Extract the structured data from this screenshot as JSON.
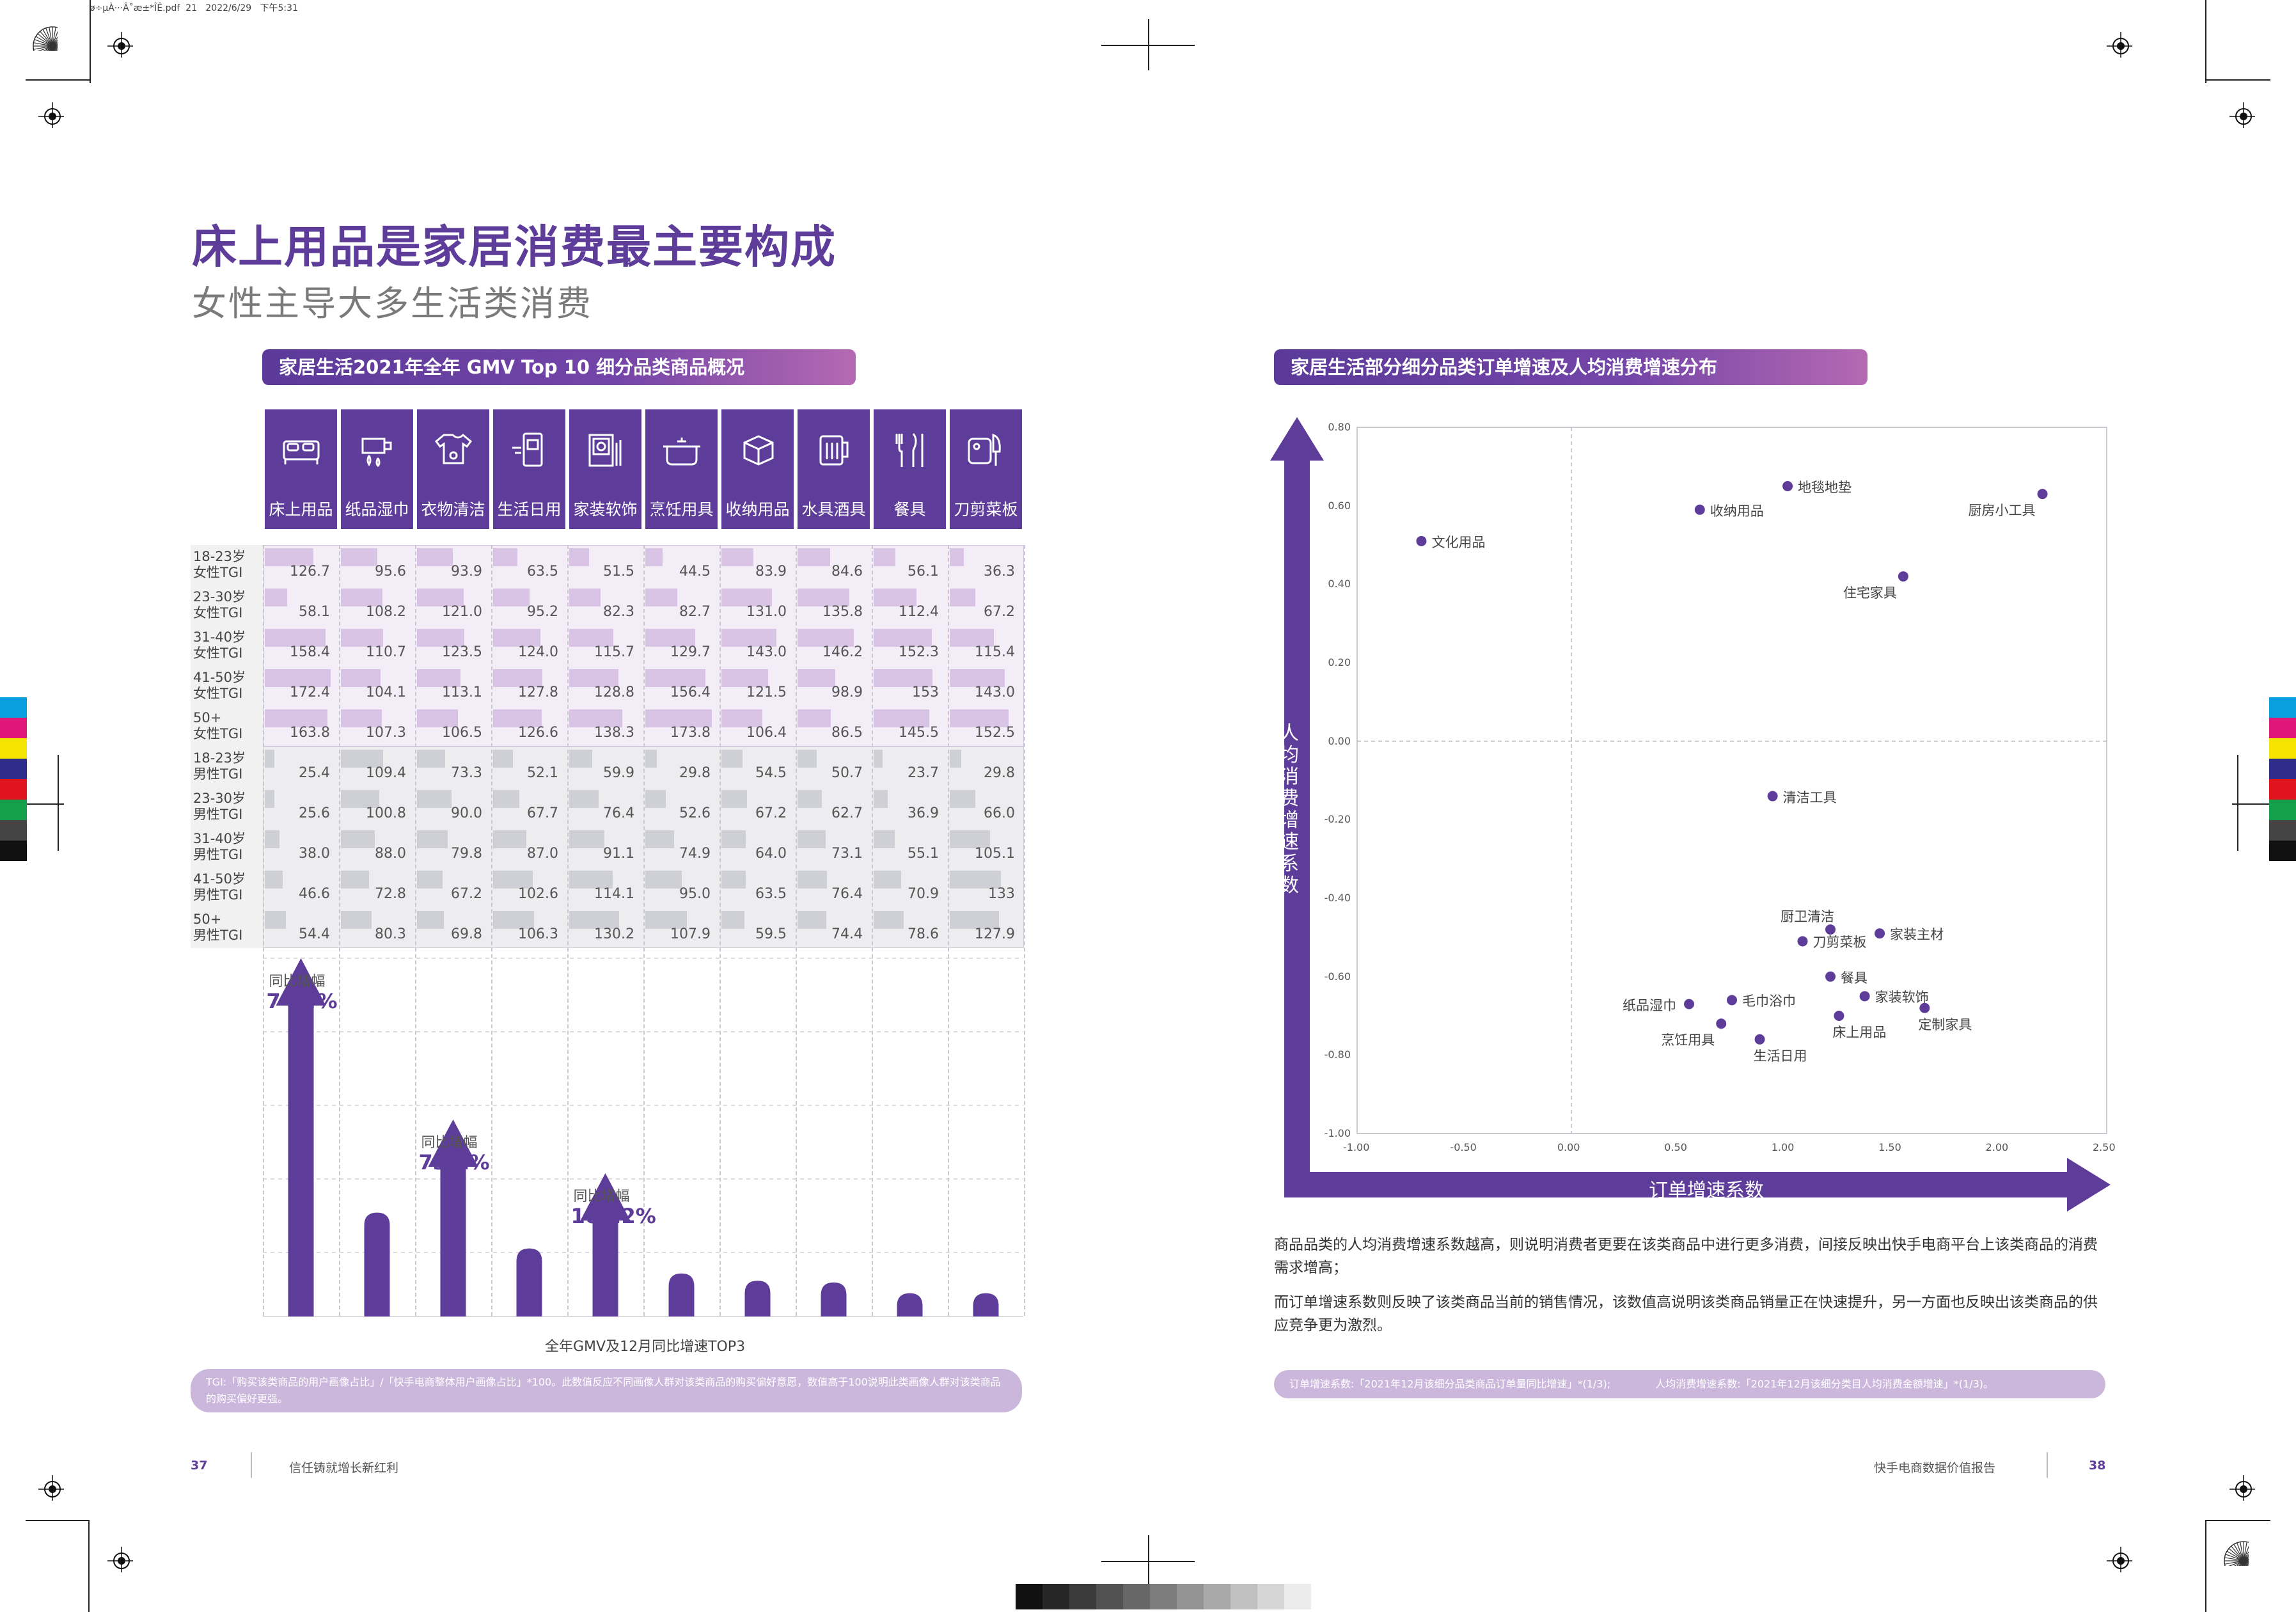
{
  "file_info": "ø÷µÀ···Â˚æ±*ÎÊ.pdf  21   2022/6/29   下午5:31",
  "title": "床上用品是家居消费最主要构成",
  "subtitle": "女性主导大多生活类消费",
  "left_section": {
    "header": "家居生活2021年全年 GMV Top 10 细分品类商品概况",
    "categories": [
      {
        "label": "床上用品",
        "icon": "bed-icon"
      },
      {
        "label": "纸品湿巾",
        "icon": "tissue-icon"
      },
      {
        "label": "衣物清洁",
        "icon": "laundry-icon"
      },
      {
        "label": "生活日用",
        "icon": "daily-goods-icon"
      },
      {
        "label": "家装软饰",
        "icon": "decor-icon"
      },
      {
        "label": "烹饪用具",
        "icon": "pot-icon"
      },
      {
        "label": "收纳用品",
        "icon": "storage-box-icon"
      },
      {
        "label": "水具酒具",
        "icon": "mug-icon"
      },
      {
        "label": "餐具",
        "icon": "cutlery-icon"
      },
      {
        "label": "刀剪菜板",
        "icon": "knife-board-icon"
      }
    ],
    "rows": [
      {
        "l1": "18-23岁",
        "l2": "女性TGI",
        "group": "female",
        "values": [
          "126.7",
          "95.6",
          "93.9",
          "63.5",
          "51.5",
          "44.5",
          "83.9",
          "84.6",
          "56.1",
          "36.3"
        ]
      },
      {
        "l1": "23-30岁",
        "l2": "女性TGI",
        "group": "female",
        "values": [
          "58.1",
          "108.2",
          "121.0",
          "95.2",
          "82.3",
          "82.7",
          "131.0",
          "135.8",
          "112.4",
          "67.2"
        ]
      },
      {
        "l1": "31-40岁",
        "l2": "女性TGI",
        "group": "female",
        "values": [
          "158.4",
          "110.7",
          "123.5",
          "124.0",
          "115.7",
          "129.7",
          "143.0",
          "146.2",
          "152.3",
          "115.4"
        ]
      },
      {
        "l1": "41-50岁",
        "l2": "女性TGI",
        "group": "female",
        "values": [
          "172.4",
          "104.1",
          "113.1",
          "127.8",
          "128.8",
          "156.4",
          "121.5",
          "98.9",
          "153",
          "143.0"
        ]
      },
      {
        "l1": "50+",
        "l2": "女性TGI",
        "group": "female",
        "values": [
          "163.8",
          "107.3",
          "106.5",
          "126.6",
          "138.3",
          "173.8",
          "106.4",
          "86.5",
          "145.5",
          "152.5"
        ]
      },
      {
        "l1": "18-23岁",
        "l2": "男性TGI",
        "group": "male",
        "values": [
          "25.4",
          "109.4",
          "73.3",
          "52.1",
          "59.9",
          "29.8",
          "54.5",
          "50.7",
          "23.7",
          "29.8"
        ]
      },
      {
        "l1": "23-30岁",
        "l2": "男性TGI",
        "group": "male",
        "values": [
          "25.6",
          "100.8",
          "90.0",
          "67.7",
          "76.4",
          "52.6",
          "67.2",
          "62.7",
          "36.9",
          "66.0"
        ]
      },
      {
        "l1": "31-40岁",
        "l2": "男性TGI",
        "group": "male",
        "values": [
          "38.0",
          "88.0",
          "79.8",
          "87.0",
          "91.1",
          "74.9",
          "64.0",
          "73.1",
          "55.1",
          "105.1"
        ]
      },
      {
        "l1": "41-50岁",
        "l2": "男性TGI",
        "group": "male",
        "values": [
          "46.6",
          "72.8",
          "67.2",
          "102.6",
          "114.1",
          "95.0",
          "63.5",
          "76.4",
          "70.9",
          "133"
        ]
      },
      {
        "l1": "50+",
        "l2": "男性TGI",
        "group": "male",
        "values": [
          "54.4",
          "80.3",
          "69.8",
          "106.3",
          "130.2",
          "107.9",
          "59.5",
          "74.4",
          "78.6",
          "127.9"
        ]
      }
    ],
    "gmv_relative": [
      1.0,
      0.29,
      0.55,
      0.19,
      0.4,
      0.12,
      0.1,
      0.095,
      0.065,
      0.065
    ],
    "growth_top3": [
      {
        "index": 0,
        "label": "同比增幅",
        "pct": "74.4%"
      },
      {
        "index": 2,
        "label": "同比增幅",
        "pct": "73.1%"
      },
      {
        "index": 4,
        "label": "同比增幅",
        "pct": "101.2%"
      }
    ],
    "caption": "全年GMV及12月同比增速TOP3",
    "note": "TGI:「购买该类商品的用户画像占比」/「快手电商整体用户画像占比」*100。此数值反应不同画像人群对该类商品的购买偏好意愿，数值高于100说明此类画像人群对该类商品的购买偏好更强。"
  },
  "right_section": {
    "header": "家居生活部分细分品类订单增速及人均消费增速分布",
    "x_axis_label": "订单增速系数",
    "y_axis_label": "人均消费增速系数",
    "paragraph1": "商品品类的人均消费增速系数越高，则说明消费者更要在该类商品中进行更多消费，间接反映出快手电商平台上该类商品的消费需求增高；",
    "paragraph2": "而订单增速系数则反映了该类商品当前的销售情况，该数值高说明该类商品销量正在快速提升，另一方面也反映出该类商品的供应竞争更为激烈。",
    "note_left": "订单增速系数:「2021年12月该细分品类商品订单量同比增速」*(1/3);",
    "note_right": "人均消费增速系数:「2021年12月该细分类目人均消费金额增速」*(1/3)。"
  },
  "chart_data": {
    "type": "scatter",
    "title": "家居生活部分细分品类订单增速及人均消费增速分布",
    "xlabel": "订单增速系数",
    "ylabel": "人均消费增速系数",
    "xlim": [
      -1.0,
      2.5
    ],
    "ylim": [
      -1.0,
      0.8
    ],
    "xticks": [
      "-1.00",
      "-0.50",
      "0.00",
      "0.50",
      "1.00",
      "1.50",
      "2.00",
      "2.50"
    ],
    "yticks": [
      "0.80",
      "0.60",
      "0.40",
      "0.20",
      "0.00",
      "-0.20",
      "-0.40",
      "-0.60",
      "-0.80",
      "-1.00"
    ],
    "grid": false,
    "point_color": "#5e3c99",
    "points": [
      {
        "name": "文化用品",
        "x": -0.7,
        "y": 0.51,
        "label_pos": "right"
      },
      {
        "name": "收纳用品",
        "x": 0.6,
        "y": 0.59,
        "label_pos": "right"
      },
      {
        "name": "地毯地垫",
        "x": 1.01,
        "y": 0.65,
        "label_pos": "right"
      },
      {
        "name": "厨房小工具",
        "x": 2.2,
        "y": 0.63,
        "label_pos": "below-left"
      },
      {
        "name": "住宅家具",
        "x": 1.55,
        "y": 0.42,
        "label_pos": "below-left"
      },
      {
        "name": "清洁工具",
        "x": 0.94,
        "y": -0.14,
        "label_pos": "right"
      },
      {
        "name": "厨卫清洁",
        "x": 1.21,
        "y": -0.48,
        "label_pos": "above-left"
      },
      {
        "name": "刀剪菜板",
        "x": 1.08,
        "y": -0.51,
        "label_pos": "right"
      },
      {
        "name": "家装主材",
        "x": 1.44,
        "y": -0.49,
        "label_pos": "right"
      },
      {
        "name": "餐具",
        "x": 1.21,
        "y": -0.6,
        "label_pos": "right"
      },
      {
        "name": "家装软饰",
        "x": 1.37,
        "y": -0.65,
        "label_pos": "right"
      },
      {
        "name": "纸品湿巾",
        "x": 0.55,
        "y": -0.67,
        "label_pos": "left"
      },
      {
        "name": "毛巾浴巾",
        "x": 0.75,
        "y": -0.66,
        "label_pos": "right"
      },
      {
        "name": "烹饪用具",
        "x": 0.7,
        "y": -0.72,
        "label_pos": "below-left"
      },
      {
        "name": "床上用品",
        "x": 1.25,
        "y": -0.7,
        "label_pos": "below"
      },
      {
        "name": "定制家具",
        "x": 1.65,
        "y": -0.68,
        "label_pos": "below"
      },
      {
        "name": "生活日用",
        "x": 0.88,
        "y": -0.76,
        "label_pos": "below"
      }
    ]
  },
  "footer": {
    "left_page": "37",
    "left_text": "信任铸就增长新红利",
    "right_text": "快手电商数据价值报告",
    "right_page": "38"
  },
  "colors": {
    "brand": "#5e3c99",
    "female_bar": "#d9c4e6",
    "male_bar": "#cfcfd6"
  }
}
